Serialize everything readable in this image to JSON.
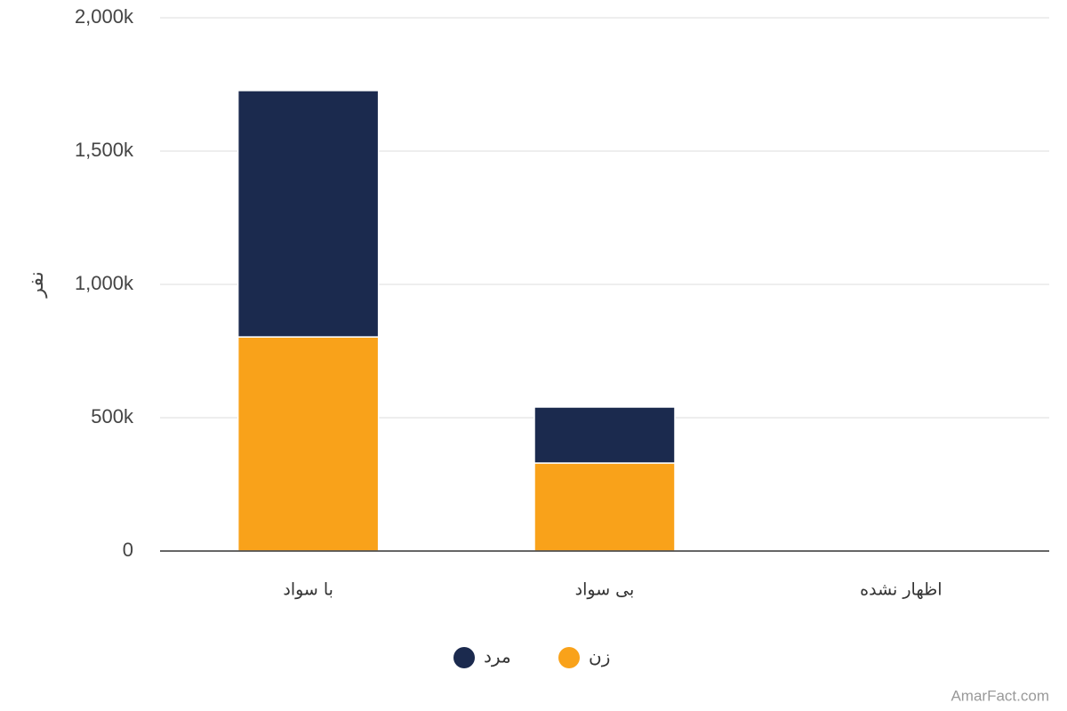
{
  "chart_data": {
    "type": "stacked_bar",
    "y_label": "نفر",
    "categories": [
      "با سواد",
      "بی سواد",
      "اظهار نشده"
    ],
    "series": [
      {
        "name": "زن",
        "color": "#f9a21a",
        "values": [
          803000,
          330000,
          0
        ]
      },
      {
        "name": "مرد",
        "color": "#1b2a4e",
        "values": [
          924000,
          210000,
          0
        ]
      }
    ],
    "ylim": [
      0,
      2000000
    ],
    "yticks": [
      0,
      {
        "value": 500000,
        "label": "500k"
      },
      {
        "value": 1000000,
        "label": "1,000k"
      },
      {
        "value": 1500000,
        "label": "1,500k"
      },
      {
        "value": 2000000,
        "label": "2,000k"
      }
    ],
    "grid": true,
    "watermark": "AmarFact.com"
  }
}
